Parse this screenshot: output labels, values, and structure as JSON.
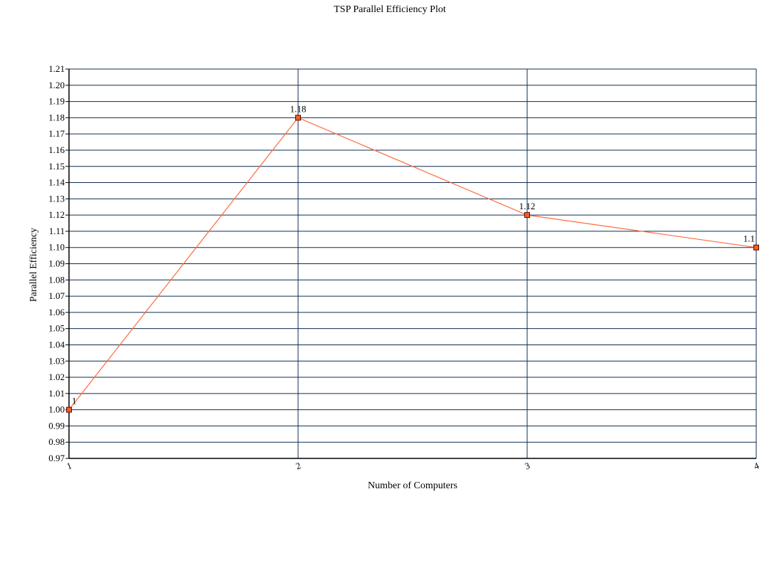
{
  "chart_data": {
    "type": "line",
    "title": "TSP Parallel Efficiency Plot",
    "xlabel": "Number of Computers",
    "ylabel": "Parallel Efficiency",
    "categories": [
      "1",
      "2",
      "3",
      "4"
    ],
    "series": [
      {
        "values": [
          1,
          1.18,
          1.12,
          1.1
        ],
        "data_labels": [
          "1",
          "1.18",
          "1.12",
          "1.1"
        ]
      }
    ],
    "ylim": [
      0.97,
      1.21
    ],
    "y_ticks": [
      "0.97",
      "0.98",
      "0.99",
      "1.00",
      "1.01",
      "1.02",
      "1.03",
      "1.04",
      "1.05",
      "1.06",
      "1.07",
      "1.08",
      "1.09",
      "1.10",
      "1.11",
      "1.12",
      "1.13",
      "1.14",
      "1.15",
      "1.16",
      "1.17",
      "1.18",
      "1.19",
      "1.20",
      "1.21"
    ],
    "grid": true,
    "legend": "none"
  },
  "colors": {
    "series_line": "#ff6a3d",
    "marker_fill": "#ff5a1f",
    "marker_stroke": "#5a0a00",
    "grid": "#0c2d4f",
    "axis": "#000000"
  }
}
